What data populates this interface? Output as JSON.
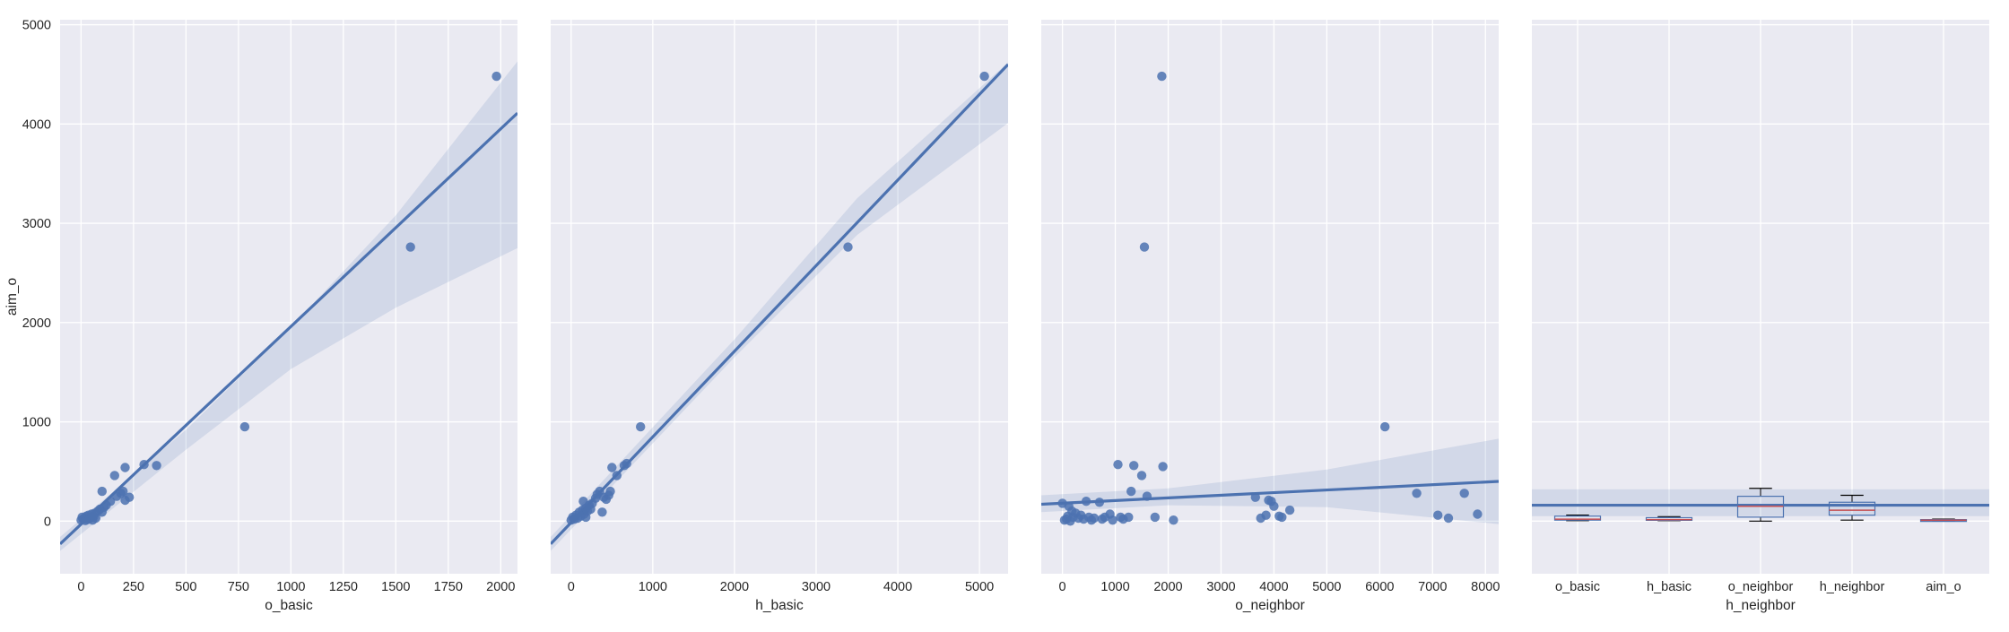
{
  "chart_data": [
    {
      "type": "scatter",
      "xlabel": "o_basic",
      "ylabel": "aim_o",
      "xlim": [
        -100,
        2080
      ],
      "ylim": [
        -530,
        5050
      ],
      "xticks": [
        0,
        250,
        500,
        750,
        1000,
        1250,
        1500,
        1750,
        2000
      ],
      "yticks": [
        0,
        1000,
        2000,
        3000,
        4000,
        5000
      ],
      "points": [
        [
          0,
          10
        ],
        [
          5,
          40
        ],
        [
          10,
          20
        ],
        [
          15,
          30
        ],
        [
          20,
          5
        ],
        [
          25,
          50
        ],
        [
          30,
          15
        ],
        [
          35,
          60
        ],
        [
          40,
          25
        ],
        [
          45,
          35
        ],
        [
          50,
          70
        ],
        [
          55,
          10
        ],
        [
          60,
          45
        ],
        [
          65,
          80
        ],
        [
          70,
          30
        ],
        [
          80,
          100
        ],
        [
          90,
          120
        ],
        [
          100,
          90
        ],
        [
          110,
          140
        ],
        [
          120,
          160
        ],
        [
          100,
          300
        ],
        [
          140,
          200
        ],
        [
          170,
          250
        ],
        [
          190,
          280
        ],
        [
          200,
          300
        ],
        [
          210,
          210
        ],
        [
          230,
          240
        ],
        [
          160,
          460
        ],
        [
          210,
          540
        ],
        [
          300,
          570
        ],
        [
          360,
          560
        ],
        [
          780,
          950
        ],
        [
          1570,
          2760
        ],
        [
          1980,
          4480
        ]
      ],
      "regression": {
        "x0": -100,
        "y0": -230,
        "x1": 2080,
        "y1": 4110
      },
      "ci": {
        "x": [
          -100,
          500,
          1000,
          1500,
          2080
        ],
        "lower": [
          -300,
          720,
          1530,
          2150,
          2750
        ],
        "upper": [
          -160,
          920,
          1950,
          3080,
          4630
        ]
      }
    },
    {
      "type": "scatter",
      "xlabel": "h_basic",
      "ylabel": "",
      "xlim": [
        -250,
        5350
      ],
      "ylim": [
        -530,
        5050
      ],
      "xticks": [
        0,
        1000,
        2000,
        3000,
        4000,
        5000
      ],
      "yticks": [
        0,
        1000,
        2000,
        3000,
        4000,
        5000
      ],
      "points": [
        [
          0,
          10
        ],
        [
          20,
          40
        ],
        [
          40,
          20
        ],
        [
          60,
          60
        ],
        [
          80,
          30
        ],
        [
          100,
          90
        ],
        [
          120,
          50
        ],
        [
          140,
          110
        ],
        [
          160,
          70
        ],
        [
          180,
          130
        ],
        [
          200,
          100
        ],
        [
          220,
          160
        ],
        [
          240,
          120
        ],
        [
          150,
          200
        ],
        [
          180,
          40
        ],
        [
          260,
          180
        ],
        [
          300,
          230
        ],
        [
          320,
          270
        ],
        [
          350,
          300
        ],
        [
          380,
          90
        ],
        [
          400,
          240
        ],
        [
          430,
          220
        ],
        [
          460,
          260
        ],
        [
          480,
          300
        ],
        [
          500,
          540
        ],
        [
          560,
          460
        ],
        [
          650,
          560
        ],
        [
          680,
          580
        ],
        [
          850,
          950
        ],
        [
          3390,
          2760
        ],
        [
          5060,
          4480
        ]
      ],
      "regression": {
        "x0": -250,
        "y0": -230,
        "x1": 5350,
        "y1": 4600
      },
      "ci": {
        "x": [
          -250,
          2000,
          3500,
          5350
        ],
        "lower": [
          -300,
          1650,
          2880,
          4010
        ],
        "upper": [
          -160,
          1830,
          3250,
          4620
        ]
      }
    },
    {
      "type": "scatter",
      "xlabel": "o_neighbor",
      "ylabel": "",
      "xlim": [
        -400,
        8250
      ],
      "ylim": [
        -530,
        5050
      ],
      "xticks": [
        0,
        1000,
        2000,
        3000,
        4000,
        5000,
        6000,
        7000,
        8000
      ],
      "yticks": [
        0,
        1000,
        2000,
        3000,
        4000,
        5000
      ],
      "points": [
        [
          0,
          180
        ],
        [
          40,
          10
        ],
        [
          80,
          20
        ],
        [
          100,
          50
        ],
        [
          120,
          150
        ],
        [
          150,
          0
        ],
        [
          180,
          100
        ],
        [
          200,
          40
        ],
        [
          250,
          80
        ],
        [
          300,
          30
        ],
        [
          350,
          60
        ],
        [
          400,
          20
        ],
        [
          450,
          200
        ],
        [
          500,
          40
        ],
        [
          550,
          10
        ],
        [
          600,
          30
        ],
        [
          700,
          190
        ],
        [
          750,
          20
        ],
        [
          800,
          40
        ],
        [
          900,
          70
        ],
        [
          950,
          10
        ],
        [
          1050,
          570
        ],
        [
          1100,
          40
        ],
        [
          1150,
          20
        ],
        [
          1250,
          40
        ],
        [
          1300,
          300
        ],
        [
          1350,
          560
        ],
        [
          1500,
          460
        ],
        [
          1550,
          2760
        ],
        [
          1600,
          250
        ],
        [
          1750,
          40
        ],
        [
          1880,
          4480
        ],
        [
          1900,
          550
        ],
        [
          2100,
          10
        ],
        [
          3650,
          240
        ],
        [
          3750,
          30
        ],
        [
          3850,
          60
        ],
        [
          3900,
          210
        ],
        [
          3950,
          200
        ],
        [
          4000,
          150
        ],
        [
          4100,
          50
        ],
        [
          4150,
          40
        ],
        [
          4300,
          110
        ],
        [
          6100,
          950
        ],
        [
          6700,
          280
        ],
        [
          7100,
          60
        ],
        [
          7300,
          30
        ],
        [
          7600,
          280
        ],
        [
          7850,
          70
        ]
      ],
      "regression": {
        "x0": -400,
        "y0": 170,
        "x1": 8250,
        "y1": 400
      },
      "ci": {
        "x": [
          -400,
          2000,
          5000,
          8250
        ],
        "lower": [
          90,
          160,
          140,
          -30
        ],
        "upper": [
          260,
          330,
          520,
          830
        ]
      }
    },
    {
      "type": "box",
      "xlabel": "h_neighbor",
      "ylabel": "",
      "ylim": [
        -530,
        5050
      ],
      "yticks": [
        0,
        1000,
        2000,
        3000,
        4000,
        5000
      ],
      "categories": [
        "o_basic",
        "h_basic",
        "o_neighbor",
        "h_neighbor",
        "aim_o"
      ],
      "boxes": [
        {
          "min": 5,
          "q1": 10,
          "median": 20,
          "q3": 50,
          "max": 60
        },
        {
          "min": 5,
          "q1": 8,
          "median": 15,
          "q3": 35,
          "max": 45
        },
        {
          "min": 0,
          "q1": 40,
          "median": 150,
          "q3": 250,
          "max": 330
        },
        {
          "min": 10,
          "q1": 60,
          "median": 110,
          "q3": 190,
          "max": 260
        },
        {
          "min": 5,
          "q1": 8,
          "median": 10,
          "q3": 15,
          "max": 20
        }
      ],
      "hline": 160,
      "hband": [
        50,
        320
      ]
    }
  ]
}
